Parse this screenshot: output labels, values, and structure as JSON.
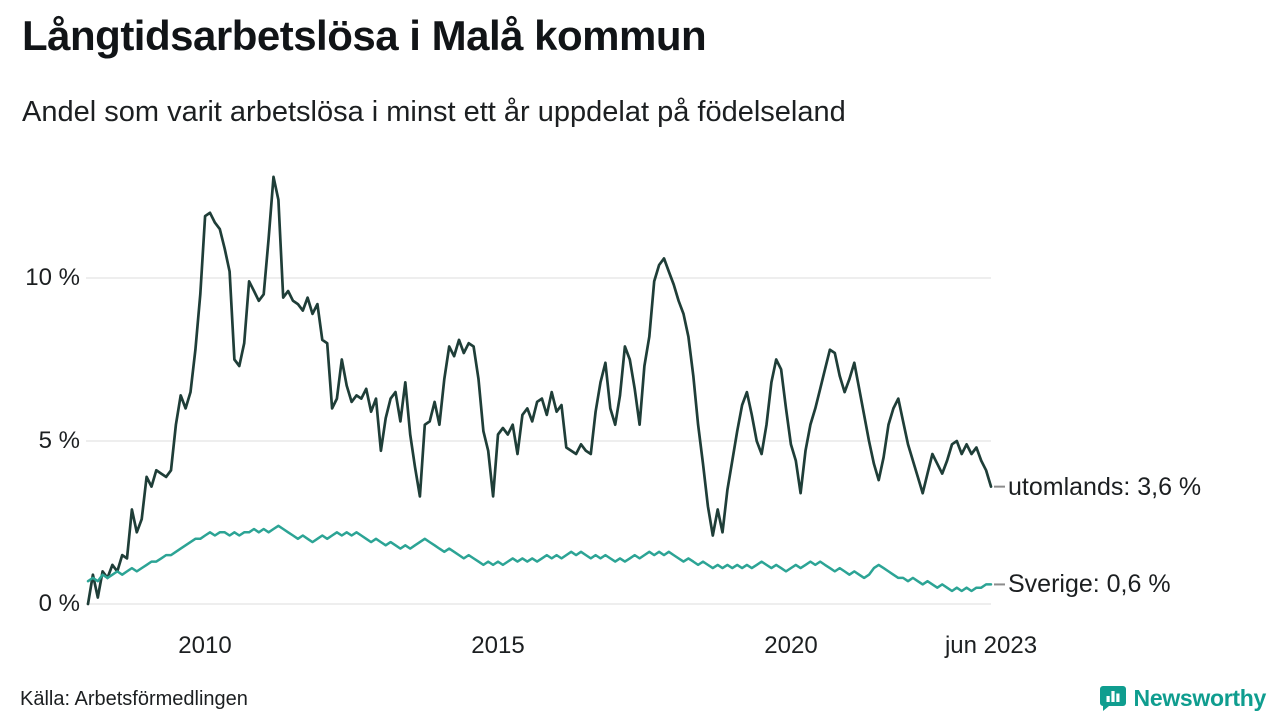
{
  "header": {
    "title": "Långtidsarbetslösa i Malå kommun",
    "subtitle": "Andel som varit arbetslösa i minst ett år uppdelat på födelseland"
  },
  "footer": {
    "source": "Källa: Arbetsförmedlingen",
    "brand": "Newsworthy",
    "brand_color": "#0f9d8f"
  },
  "chart_data": {
    "type": "line",
    "title": "Långtidsarbetslösa i Malå kommun",
    "subtitle": "Andel som varit arbetslösa i minst ett år uppdelat på födelseland",
    "x_start": "2008-01",
    "x_end": "2023-06",
    "x_unit": "month",
    "x_tick_labels": [
      "2010",
      "2015",
      "2020",
      "jun 2023"
    ],
    "x_tick_month_index": [
      24,
      84,
      144,
      185
    ],
    "y_ticks": [
      0,
      5,
      10
    ],
    "y_tick_labels": [
      "0 %",
      "5 %",
      "10 %"
    ],
    "ylim": [
      0,
      13.5
    ],
    "grid": "horizontal",
    "legend_position": "right-end-labels",
    "grid_color": "#dcdcdc",
    "series": [
      {
        "name": "utomlands",
        "end_label": "utomlands: 3,6 %",
        "end_value": 3.6,
        "color": "#1f3e38",
        "values": [
          0.0,
          0.9,
          0.2,
          1.0,
          0.8,
          1.2,
          1.0,
          1.5,
          1.4,
          2.9,
          2.2,
          2.6,
          3.9,
          3.6,
          4.1,
          4.0,
          3.9,
          4.1,
          5.5,
          6.4,
          6.0,
          6.5,
          7.8,
          9.5,
          11.9,
          12.0,
          11.7,
          11.5,
          10.9,
          10.2,
          7.5,
          7.3,
          8.0,
          9.9,
          9.6,
          9.3,
          9.5,
          11.2,
          13.1,
          12.4,
          9.4,
          9.6,
          9.3,
          9.2,
          9.0,
          9.4,
          8.9,
          9.2,
          8.1,
          8.0,
          6.0,
          6.3,
          7.5,
          6.7,
          6.2,
          6.4,
          6.3,
          6.6,
          5.9,
          6.3,
          4.7,
          5.7,
          6.3,
          6.5,
          5.6,
          6.8,
          5.2,
          4.2,
          3.3,
          5.5,
          5.6,
          6.2,
          5.5,
          6.9,
          7.9,
          7.6,
          8.1,
          7.7,
          8.0,
          7.9,
          6.9,
          5.3,
          4.7,
          3.3,
          5.2,
          5.4,
          5.2,
          5.5,
          4.6,
          5.8,
          6.0,
          5.6,
          6.2,
          6.3,
          5.8,
          6.5,
          5.9,
          6.1,
          4.8,
          4.7,
          4.6,
          4.9,
          4.7,
          4.6,
          5.9,
          6.8,
          7.4,
          6.0,
          5.5,
          6.4,
          7.9,
          7.5,
          6.6,
          5.5,
          7.3,
          8.2,
          9.9,
          10.4,
          10.6,
          10.2,
          9.8,
          9.3,
          8.9,
          8.2,
          7.0,
          5.5,
          4.3,
          3.0,
          2.1,
          2.9,
          2.2,
          3.5,
          4.4,
          5.3,
          6.1,
          6.5,
          5.8,
          5.0,
          4.6,
          5.5,
          6.8,
          7.5,
          7.2,
          6.0,
          4.9,
          4.4,
          3.4,
          4.7,
          5.5,
          6.0,
          6.6,
          7.2,
          7.8,
          7.7,
          7.0,
          6.5,
          6.9,
          7.4,
          6.6,
          5.8,
          5.0,
          4.3,
          3.8,
          4.5,
          5.5,
          6.0,
          6.3,
          5.6,
          4.9,
          4.4,
          3.9,
          3.4,
          4.0,
          4.6,
          4.3,
          4.0,
          4.4,
          4.9,
          5.0,
          4.6,
          4.9,
          4.6,
          4.8,
          4.4,
          4.1,
          3.6
        ]
      },
      {
        "name": "Sverige",
        "end_label": "Sverige: 0,6 %",
        "end_value": 0.6,
        "color": "#2ca495",
        "values": [
          0.7,
          0.8,
          0.7,
          0.9,
          0.8,
          0.9,
          1.0,
          0.9,
          1.0,
          1.1,
          1.0,
          1.1,
          1.2,
          1.3,
          1.3,
          1.4,
          1.5,
          1.5,
          1.6,
          1.7,
          1.8,
          1.9,
          2.0,
          2.0,
          2.1,
          2.2,
          2.1,
          2.2,
          2.2,
          2.1,
          2.2,
          2.1,
          2.2,
          2.2,
          2.3,
          2.2,
          2.3,
          2.2,
          2.3,
          2.4,
          2.3,
          2.2,
          2.1,
          2.0,
          2.1,
          2.0,
          1.9,
          2.0,
          2.1,
          2.0,
          2.1,
          2.2,
          2.1,
          2.2,
          2.1,
          2.2,
          2.1,
          2.0,
          1.9,
          2.0,
          1.9,
          1.8,
          1.9,
          1.8,
          1.7,
          1.8,
          1.7,
          1.8,
          1.9,
          2.0,
          1.9,
          1.8,
          1.7,
          1.6,
          1.7,
          1.6,
          1.5,
          1.4,
          1.5,
          1.4,
          1.3,
          1.2,
          1.3,
          1.2,
          1.3,
          1.2,
          1.3,
          1.4,
          1.3,
          1.4,
          1.3,
          1.4,
          1.3,
          1.4,
          1.5,
          1.4,
          1.5,
          1.4,
          1.5,
          1.6,
          1.5,
          1.6,
          1.5,
          1.4,
          1.5,
          1.4,
          1.5,
          1.4,
          1.3,
          1.4,
          1.3,
          1.4,
          1.5,
          1.4,
          1.5,
          1.6,
          1.5,
          1.6,
          1.5,
          1.6,
          1.5,
          1.4,
          1.3,
          1.4,
          1.3,
          1.2,
          1.3,
          1.2,
          1.1,
          1.2,
          1.1,
          1.2,
          1.1,
          1.2,
          1.1,
          1.2,
          1.1,
          1.2,
          1.3,
          1.2,
          1.1,
          1.2,
          1.1,
          1.0,
          1.1,
          1.2,
          1.1,
          1.2,
          1.3,
          1.2,
          1.3,
          1.2,
          1.1,
          1.0,
          1.1,
          1.0,
          0.9,
          1.0,
          0.9,
          0.8,
          0.9,
          1.1,
          1.2,
          1.1,
          1.0,
          0.9,
          0.8,
          0.8,
          0.7,
          0.8,
          0.7,
          0.6,
          0.7,
          0.6,
          0.5,
          0.6,
          0.5,
          0.4,
          0.5,
          0.4,
          0.5,
          0.4,
          0.5,
          0.5,
          0.6,
          0.6
        ]
      }
    ]
  }
}
